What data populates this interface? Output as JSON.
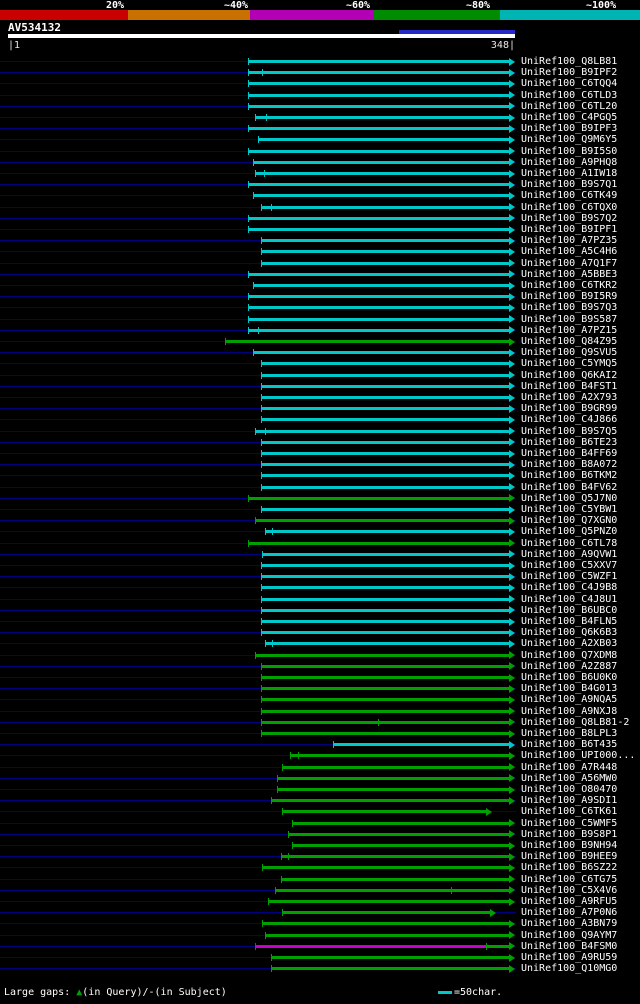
{
  "chart_data": {
    "type": "bar",
    "title": "AV534132",
    "description": "BLAST-style graphical overview of alignments of UniRef100 hits against query AV534132 (positions 1-348)",
    "identity_scale": {
      "labels": [
        "20%",
        "~40%",
        "~60%",
        "~80%",
        "~100%"
      ],
      "segment_colors": [
        "#c80000",
        "#c87000",
        "#b400b4",
        "#008c00",
        "#00b4b4"
      ]
    },
    "query": {
      "name": "AV534132",
      "start_label": "|1",
      "end_label": "348|",
      "length": 348,
      "highlight": {
        "from": 272,
        "to": 348,
        "color": "#2828c8"
      }
    },
    "colors": {
      "cyan": "#00c8c8",
      "green": "#00a000",
      "magenta": "#c800c8"
    },
    "footer": {
      "gaps_prefix": "Large gaps: ",
      "gaps_triangle": "▲",
      "gaps_suffix": "(in Query)/-(in Subject)",
      "scale_label": "=50char."
    },
    "hits": [
      {
        "label": "UniRef100_Q8LB81",
        "color": "cyan",
        "from": 167,
        "to": 348
      },
      {
        "label": "UniRef100_B9IPF2",
        "color": "cyan",
        "from": 167,
        "to": 348,
        "gaps": [
          177
        ]
      },
      {
        "label": "UniRef100_C6TQQ4",
        "color": "cyan",
        "from": 167,
        "to": 348
      },
      {
        "label": "UniRef100_C6TLD3",
        "color": "cyan",
        "from": 167,
        "to": 348
      },
      {
        "label": "UniRef100_C6TL20",
        "color": "cyan",
        "from": 167,
        "to": 348
      },
      {
        "label": "UniRef100_C4PGQ5",
        "color": "cyan",
        "from": 172,
        "to": 348,
        "gaps": [
          180
        ]
      },
      {
        "label": "UniRef100_B9IPF3",
        "color": "cyan",
        "from": 167,
        "to": 348
      },
      {
        "label": "UniRef100_Q9M6Y5",
        "color": "cyan",
        "from": 174,
        "to": 348
      },
      {
        "label": "UniRef100_B9I5S0",
        "color": "cyan",
        "from": 167,
        "to": 348
      },
      {
        "label": "UniRef100_A9PHQ8",
        "color": "cyan",
        "from": 171,
        "to": 348
      },
      {
        "label": "UniRef100_A1IW18",
        "color": "cyan",
        "from": 172,
        "to": 348,
        "gaps": [
          178
        ]
      },
      {
        "label": "UniRef100_B9S7Q1",
        "color": "cyan",
        "from": 167,
        "to": 348
      },
      {
        "label": "UniRef100_C6TK49",
        "color": "cyan",
        "from": 171,
        "to": 348
      },
      {
        "label": "UniRef100_C6TQX0",
        "color": "cyan",
        "from": 176,
        "to": 348,
        "gaps": [
          183
        ]
      },
      {
        "label": "UniRef100_B9S7Q2",
        "color": "cyan",
        "from": 167,
        "to": 348
      },
      {
        "label": "UniRef100_B9IPF1",
        "color": "cyan",
        "from": 167,
        "to": 348
      },
      {
        "label": "UniRef100_A7PZ35",
        "color": "cyan",
        "from": 176,
        "to": 348
      },
      {
        "label": "UniRef100_A5C4H6",
        "color": "cyan",
        "from": 176,
        "to": 348
      },
      {
        "label": "UniRef100_A7Q1F7",
        "color": "cyan",
        "from": 176,
        "to": 348
      },
      {
        "label": "UniRef100_A5BBE3",
        "color": "cyan",
        "from": 167,
        "to": 348
      },
      {
        "label": "UniRef100_C6TKR2",
        "color": "cyan",
        "from": 171,
        "to": 348
      },
      {
        "label": "UniRef100_B9I5R9",
        "color": "cyan",
        "from": 167,
        "to": 348
      },
      {
        "label": "UniRef100_B9S7Q3",
        "color": "cyan",
        "from": 167,
        "to": 348
      },
      {
        "label": "UniRef100_B9S587",
        "color": "cyan",
        "from": 167,
        "to": 348
      },
      {
        "label": "UniRef100_A7PZ15",
        "color": "cyan",
        "from": 167,
        "to": 348,
        "gaps": [
          174
        ]
      },
      {
        "label": "UniRef100_Q84Z95",
        "color": "green",
        "from": 151,
        "to": 348
      },
      {
        "label": "UniRef100_Q9SVU5",
        "color": "cyan",
        "from": 171,
        "to": 348
      },
      {
        "label": "UniRef100_C5YMQ5",
        "color": "cyan",
        "from": 176,
        "to": 348
      },
      {
        "label": "UniRef100_Q6KAI2",
        "color": "cyan",
        "from": 176,
        "to": 348
      },
      {
        "label": "UniRef100_B4FST1",
        "color": "cyan",
        "from": 176,
        "to": 348
      },
      {
        "label": "UniRef100_A2X793",
        "color": "cyan",
        "from": 176,
        "to": 348
      },
      {
        "label": "UniRef100_B9GR99",
        "color": "cyan",
        "from": 176,
        "to": 348
      },
      {
        "label": "UniRef100_C4J866",
        "color": "cyan",
        "from": 176,
        "to": 348
      },
      {
        "label": "UniRef100_B9S7Q5",
        "color": "cyan",
        "from": 172,
        "to": 348,
        "gaps": [
          179
        ]
      },
      {
        "label": "UniRef100_B6TE23",
        "color": "cyan",
        "from": 176,
        "to": 348
      },
      {
        "label": "UniRef100_B4FF69",
        "color": "cyan",
        "from": 176,
        "to": 348
      },
      {
        "label": "UniRef100_B8A072",
        "color": "cyan",
        "from": 176,
        "to": 348
      },
      {
        "label": "UniRef100_B6TKM2",
        "color": "cyan",
        "from": 176,
        "to": 348
      },
      {
        "label": "UniRef100_B4FV62",
        "color": "cyan",
        "from": 176,
        "to": 348
      },
      {
        "label": "UniRef100_Q5J7N0",
        "color": "green",
        "from": 167,
        "to": 348
      },
      {
        "label": "UniRef100_C5YBW1",
        "color": "cyan",
        "from": 176,
        "to": 348
      },
      {
        "label": "UniRef100_Q7XGN0",
        "color": "green",
        "from": 172,
        "to": 348
      },
      {
        "label": "UniRef100_Q5PNZ0",
        "color": "cyan",
        "from": 179,
        "to": 348,
        "gaps": [
          184
        ]
      },
      {
        "label": "UniRef100_C6TL78",
        "color": "green",
        "from": 167,
        "to": 348
      },
      {
        "label": "UniRef100_A9QVW1",
        "color": "cyan",
        "from": 177,
        "to": 348
      },
      {
        "label": "UniRef100_C5XXV7",
        "color": "cyan",
        "from": 176,
        "to": 348
      },
      {
        "label": "UniRef100_C5WZF1",
        "color": "cyan",
        "from": 176,
        "to": 348
      },
      {
        "label": "UniRef100_C4J9B8",
        "color": "cyan",
        "from": 176,
        "to": 348
      },
      {
        "label": "UniRef100_C4J8U1",
        "color": "cyan",
        "from": 176,
        "to": 348
      },
      {
        "label": "UniRef100_B6UBC0",
        "color": "cyan",
        "from": 176,
        "to": 348
      },
      {
        "label": "UniRef100_B4FLN5",
        "color": "cyan",
        "from": 176,
        "to": 348
      },
      {
        "label": "UniRef100_Q6K6B3",
        "color": "cyan",
        "from": 176,
        "to": 348
      },
      {
        "label": "UniRef100_A2XB03",
        "color": "cyan",
        "from": 179,
        "to": 348,
        "gaps": [
          184
        ]
      },
      {
        "label": "UniRef100_Q7XDM8",
        "color": "green",
        "from": 172,
        "to": 348
      },
      {
        "label": "UniRef100_A2Z887",
        "color": "green",
        "from": 176,
        "to": 348
      },
      {
        "label": "UniRef100_B6U0K0",
        "color": "green",
        "from": 176,
        "to": 348
      },
      {
        "label": "UniRef100_B4G013",
        "color": "green",
        "from": 176,
        "to": 348
      },
      {
        "label": "UniRef100_A9NQA5",
        "color": "green",
        "from": 176,
        "to": 348
      },
      {
        "label": "UniRef100_A9NXJ8",
        "color": "green",
        "from": 176,
        "to": 348
      },
      {
        "label": "UniRef100_Q8LB81-2",
        "color": "green",
        "from": 176,
        "to": 348,
        "gaps": [
          257
        ]
      },
      {
        "label": "UniRef100_B8LPL3",
        "color": "green",
        "from": 176,
        "to": 348
      },
      {
        "label": "UniRef100_B6T435",
        "color": "cyan",
        "from": 226,
        "to": 348
      },
      {
        "label": "UniRef100_UPI000...",
        "color": "green",
        "from": 196,
        "to": 348,
        "gaps": [
          202
        ]
      },
      {
        "label": "UniRef100_A7R448",
        "color": "green",
        "from": 191,
        "to": 348
      },
      {
        "label": "UniRef100_A56MW0",
        "color": "green",
        "from": 187,
        "to": 348
      },
      {
        "label": "UniRef100_O80470",
        "color": "green",
        "from": 187,
        "to": 348
      },
      {
        "label": "UniRef100_A9SDI1",
        "color": "green",
        "from": 183,
        "to": 348
      },
      {
        "label": "UniRef100_C6TK61",
        "color": "green",
        "from": 191,
        "to": 332
      },
      {
        "label": "UniRef100_C5WMF5",
        "color": "green",
        "from": 198,
        "to": 348
      },
      {
        "label": "UniRef100_B9S8P1",
        "color": "green",
        "from": 195,
        "to": 348
      },
      {
        "label": "UniRef100_B9NH94",
        "color": "green",
        "from": 198,
        "to": 348
      },
      {
        "label": "UniRef100_B9HEE9",
        "color": "green",
        "from": 190,
        "to": 348,
        "gaps": [
          195
        ]
      },
      {
        "label": "UniRef100_B6SZ22",
        "color": "green",
        "from": 177,
        "to": 348
      },
      {
        "label": "UniRef100_C6TG75",
        "color": "green",
        "from": 190,
        "to": 348
      },
      {
        "label": "UniRef100_C5X4V6",
        "color": "green",
        "from": 186,
        "to": 348,
        "gaps": [
          308
        ]
      },
      {
        "label": "UniRef100_A9RFU5",
        "color": "green",
        "from": 181,
        "to": 348
      },
      {
        "label": "UniRef100_A7P0N6",
        "color": "green",
        "from": 191,
        "to": 335
      },
      {
        "label": "UniRef100_A3BN79",
        "color": "green",
        "from": 177,
        "to": 348
      },
      {
        "label": "UniRef100_Q9AYM7",
        "color": "green",
        "from": 179,
        "to": 348
      },
      {
        "label": "UniRef100_B4FSM0",
        "segments": [
          {
            "from": 172,
            "to": 332,
            "color": "magenta"
          },
          {
            "from": 332,
            "to": 348,
            "color": "green"
          }
        ]
      },
      {
        "label": "UniRef100_A9RU59",
        "color": "green",
        "from": 183,
        "to": 348
      },
      {
        "label": "UniRef100_Q10MG0",
        "color": "green",
        "from": 183,
        "to": 348
      }
    ]
  }
}
